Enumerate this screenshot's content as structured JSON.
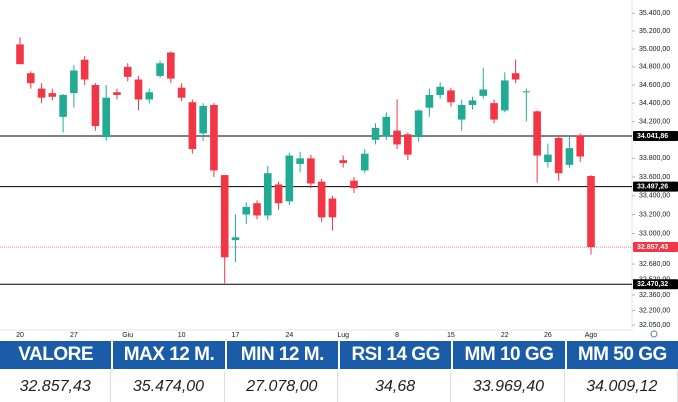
{
  "chart_data": {
    "type": "candlestick",
    "categories": [
      "20",
      null,
      null,
      null,
      null,
      "27",
      null,
      null,
      null,
      null,
      "Giu",
      null,
      null,
      null,
      null,
      "10",
      null,
      null,
      null,
      null,
      "17",
      null,
      null,
      null,
      null,
      "24",
      null,
      null,
      null,
      null,
      "Lug",
      null,
      null,
      null,
      null,
      "8",
      null,
      null,
      null,
      null,
      "15",
      null,
      null,
      null,
      null,
      "22",
      null,
      null,
      null,
      "26",
      null,
      null,
      null,
      "Ago"
    ],
    "open": [
      35050,
      34730,
      34560,
      34510,
      34250,
      34510,
      34880,
      34600,
      34030,
      34520,
      34800,
      34660,
      34440,
      34700,
      34960,
      34570,
      34410,
      34070,
      34380,
      33620,
      32930,
      33200,
      33320,
      33190,
      33520,
      33340,
      33740,
      33800,
      33550,
      33370,
      33780,
      33560,
      33670,
      34000,
      34040,
      34100,
      34060,
      34030,
      34350,
      34490,
      34540,
      34220,
      34380,
      34480,
      34400,
      34320,
      34730,
      34520,
      34310,
      33760,
      34020,
      33730,
      34050,
      33610
    ],
    "high": [
      35130,
      34750,
      34620,
      34560,
      34500,
      34820,
      34920,
      34620,
      34600,
      34560,
      34840,
      34700,
      34560,
      34870,
      34970,
      34620,
      34440,
      34400,
      34400,
      33620,
      33200,
      33330,
      33350,
      33720,
      33550,
      33860,
      33870,
      33840,
      33580,
      33400,
      33830,
      33600,
      33900,
      34180,
      34300,
      34440,
      34080,
      34330,
      34560,
      34630,
      34570,
      34440,
      34470,
      34790,
      34440,
      34740,
      34880,
      34560,
      34320,
      33960,
      34050,
      34050,
      34070,
      33620
    ],
    "low": [
      34830,
      34560,
      34400,
      34430,
      34080,
      34350,
      34600,
      34100,
      33990,
      34440,
      34640,
      34320,
      34400,
      34680,
      34620,
      34420,
      33850,
      33990,
      33600,
      32480,
      32700,
      33100,
      33150,
      33140,
      33250,
      33300,
      33650,
      33480,
      33120,
      33030,
      33700,
      33430,
      33640,
      33950,
      34000,
      33900,
      33780,
      33980,
      34250,
      34450,
      34360,
      34100,
      34330,
      34450,
      34180,
      34300,
      34620,
      34200,
      33540,
      33700,
      33560,
      33700,
      33760,
      32780
    ],
    "close": [
      34830,
      34620,
      34460,
      34470,
      34490,
      34760,
      34660,
      34150,
      34460,
      34490,
      34690,
      34440,
      34520,
      34840,
      34670,
      34460,
      33900,
      34370,
      33670,
      32750,
      32960,
      33280,
      33190,
      33640,
      33320,
      33830,
      33800,
      33530,
      33170,
      33170,
      33750,
      33480,
      33850,
      34130,
      34250,
      33950,
      33840,
      34320,
      34490,
      34580,
      34410,
      34380,
      34430,
      34550,
      34220,
      34650,
      34660,
      34530,
      33830,
      33840,
      33640,
      33910,
      33820,
      32857.43
    ],
    "up_color": "#22ab94",
    "down_color": "#f23645",
    "log_scale": true,
    "ylim": [
      32000,
      35550
    ],
    "yticks": [
      {
        "value": 35400,
        "label": "35.400,00"
      },
      {
        "value": 35200,
        "label": "35.200,00"
      },
      {
        "value": 35000,
        "label": "35.000,00"
      },
      {
        "value": 34800,
        "label": "34.800,00"
      },
      {
        "value": 34600,
        "label": "34.600,00"
      },
      {
        "value": 34400,
        "label": "34.400,00"
      },
      {
        "value": 34200,
        "label": "34.200,00"
      },
      {
        "value": 33800,
        "label": "33.800,00"
      },
      {
        "value": 33600,
        "label": "33.600,00"
      },
      {
        "value": 33400,
        "label": "33.400,00"
      },
      {
        "value": 33200,
        "label": "33.200,00"
      },
      {
        "value": 33000,
        "label": "33.000,00"
      },
      {
        "value": 32680,
        "label": "32.680,00"
      },
      {
        "value": 32520,
        "label": "32.520,00"
      },
      {
        "value": 32360,
        "label": "32.360,00"
      },
      {
        "value": 32200,
        "label": "32.200,00"
      },
      {
        "value": 32050,
        "label": "32.050,00"
      }
    ],
    "levels": [
      {
        "value": 34041.86,
        "label": "34.041,86",
        "color": "#000000"
      },
      {
        "value": 33497.26,
        "label": "33.497,26",
        "color": "#000000"
      },
      {
        "value": 32857.43,
        "label": "32.857,43",
        "color": "#f23645"
      },
      {
        "value": 32470.32,
        "label": "32.470,32",
        "color": "#000000"
      }
    ]
  },
  "table": {
    "header": [
      "VALORE",
      "MAX 12 M.",
      "MIN 12 M.",
      "RSI 14 GG",
      "MM 10 GG",
      "MM 50 GG"
    ],
    "rows": [
      [
        "32.857,43",
        "35.474,00",
        "27.078,00",
        "34,68",
        "33.969,40",
        "34.009,12"
      ]
    ]
  }
}
